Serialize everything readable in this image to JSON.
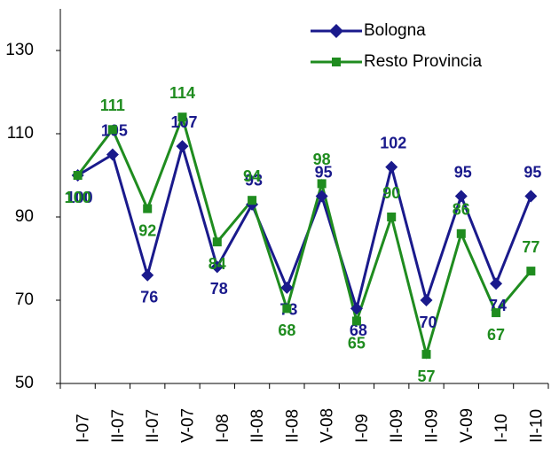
{
  "chart_data": {
    "type": "line",
    "categories": [
      "I-07",
      "II-07",
      "II-07",
      "V-07",
      "I-08",
      "II-08",
      "II-08",
      "V-08",
      "I-09",
      "II-09",
      "II-09",
      "V-09",
      "I-10",
      "II-10"
    ],
    "series": [
      {
        "name": "Bologna",
        "color": "#1a1a8c",
        "marker": "diamond",
        "values": [
          100,
          105,
          76,
          107,
          78,
          93,
          73,
          95,
          68,
          102,
          70,
          95,
          74,
          95
        ]
      },
      {
        "name": "Resto Provincia",
        "color": "#1f8c1f",
        "marker": "square",
        "values": [
          100,
          111,
          92,
          114,
          84,
          94,
          68,
          98,
          65,
          90,
          57,
          86,
          67,
          77
        ]
      }
    ],
    "ylim": [
      50,
      140
    ],
    "yticks": [
      50,
      70,
      90,
      110,
      130
    ],
    "grid": false,
    "legend": "top-right"
  }
}
